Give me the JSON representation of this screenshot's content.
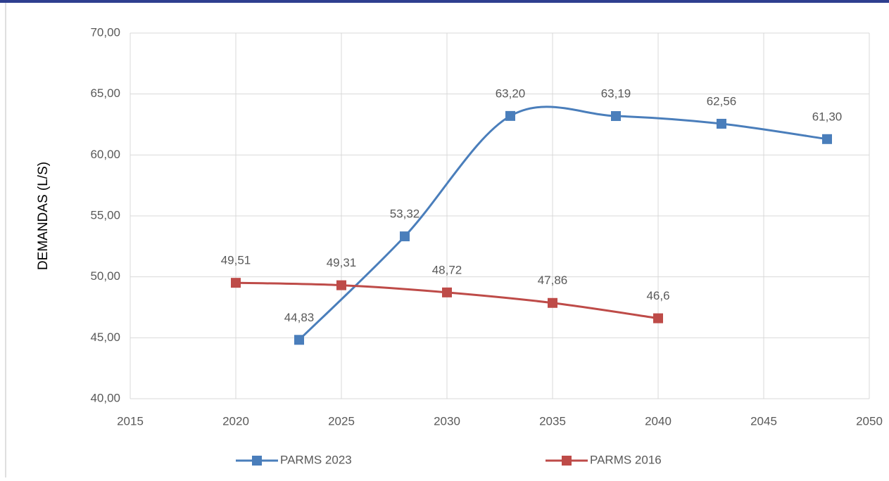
{
  "chart_data": {
    "type": "line",
    "y_label": "DEMANDAS (L/S)",
    "xlim": [
      2015,
      2050
    ],
    "xticks": [
      2015,
      2020,
      2025,
      2030,
      2035,
      2040,
      2045,
      2050
    ],
    "ylim": [
      40,
      70
    ],
    "yticks": [
      {
        "value": 40,
        "label": "40,00"
      },
      {
        "value": 45,
        "label": "45,00"
      },
      {
        "value": 50,
        "label": "50,00"
      },
      {
        "value": 55,
        "label": "55,00"
      },
      {
        "value": 60,
        "label": "60,00"
      },
      {
        "value": 65,
        "label": "65,00"
      },
      {
        "value": 70,
        "label": "70,00"
      }
    ],
    "grid": true,
    "smooth": true,
    "legend": "bottom",
    "series": [
      {
        "name": "PARMS 2023",
        "color": "#4a7ebb",
        "x": [
          2023,
          2028,
          2033,
          2038,
          2043,
          2048
        ],
        "values": [
          44.83,
          53.32,
          63.2,
          63.19,
          62.56,
          61.3
        ],
        "value_labels": [
          "44,83",
          "53,32",
          "63,20",
          "63,19",
          "62,56",
          "61,30"
        ]
      },
      {
        "name": "PARMS 2016",
        "color": "#be4b48",
        "x": [
          2020,
          2025,
          2030,
          2035,
          2040
        ],
        "values": [
          49.51,
          49.31,
          48.72,
          47.86,
          46.6
        ],
        "value_labels": [
          "49,51",
          "49,31",
          "48,72",
          "47,86",
          "46,6"
        ]
      }
    ]
  }
}
